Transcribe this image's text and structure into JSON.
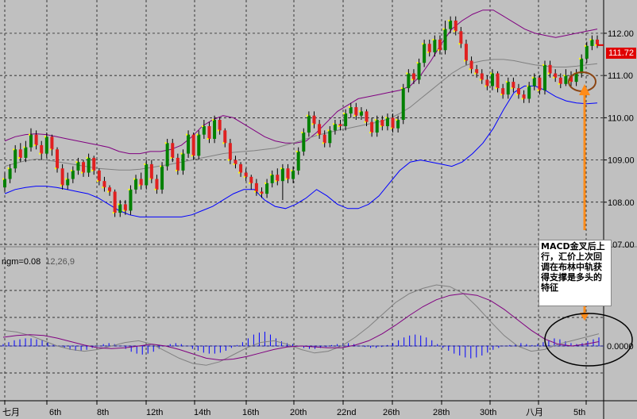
{
  "chart_data": [
    {
      "type": "candlestick",
      "panel": "price",
      "overlays": [
        "bollinger_upper",
        "bollinger_middle",
        "bollinger_lower"
      ],
      "y_ticks": [
        "107.00",
        "108.00",
        "109.00",
        "110.00",
        "111.00",
        "112.00"
      ],
      "ylim": [
        107.0,
        112.6
      ],
      "last_price": "111.72",
      "grid": true,
      "colors": {
        "up": "#008000",
        "down": "#e02020",
        "wick": "#000000",
        "upper_band": "#800080",
        "middle_band": "#808080",
        "lower_band": "#0000ff",
        "background": "#c0c0c0"
      },
      "candles": [
        {
          "o": 108.35,
          "c": 108.55,
          "h": 108.7,
          "l": 108.25
        },
        {
          "o": 108.55,
          "c": 108.8,
          "h": 108.9,
          "l": 108.45
        },
        {
          "o": 108.8,
          "c": 109.25,
          "h": 109.35,
          "l": 108.7
        },
        {
          "o": 109.25,
          "c": 109.05,
          "h": 109.4,
          "l": 108.95
        },
        {
          "o": 109.05,
          "c": 109.3,
          "h": 109.45,
          "l": 108.95
        },
        {
          "o": 109.3,
          "c": 109.6,
          "h": 109.75,
          "l": 109.2
        },
        {
          "o": 109.6,
          "c": 109.35,
          "h": 109.7,
          "l": 109.25
        },
        {
          "o": 109.35,
          "c": 109.15,
          "h": 109.45,
          "l": 109.0
        },
        {
          "o": 109.15,
          "c": 109.55,
          "h": 109.65,
          "l": 109.05
        },
        {
          "o": 109.55,
          "c": 109.25,
          "h": 109.6,
          "l": 109.1
        },
        {
          "o": 109.25,
          "c": 108.8,
          "h": 109.3,
          "l": 108.7
        },
        {
          "o": 108.8,
          "c": 108.4,
          "h": 108.9,
          "l": 108.3
        },
        {
          "o": 108.4,
          "c": 108.55,
          "h": 108.7,
          "l": 108.3
        },
        {
          "o": 108.55,
          "c": 108.75,
          "h": 108.85,
          "l": 108.45
        },
        {
          "o": 108.75,
          "c": 108.95,
          "h": 109.05,
          "l": 108.65
        },
        {
          "o": 108.95,
          "c": 108.7,
          "h": 109.0,
          "l": 108.6
        },
        {
          "o": 108.7,
          "c": 109.05,
          "h": 109.15,
          "l": 108.6
        },
        {
          "o": 109.05,
          "c": 108.75,
          "h": 109.1,
          "l": 108.65
        },
        {
          "o": 108.75,
          "c": 108.5,
          "h": 108.8,
          "l": 108.4
        },
        {
          "o": 108.5,
          "c": 108.35,
          "h": 108.6,
          "l": 108.25
        },
        {
          "o": 108.35,
          "c": 108.25,
          "h": 108.4,
          "l": 108.15
        },
        {
          "o": 108.25,
          "c": 107.75,
          "h": 108.3,
          "l": 107.65
        },
        {
          "o": 107.75,
          "c": 107.95,
          "h": 108.05,
          "l": 107.65
        },
        {
          "o": 107.95,
          "c": 107.8,
          "h": 108.05,
          "l": 107.7
        },
        {
          "o": 107.8,
          "c": 108.3,
          "h": 108.4,
          "l": 107.7
        },
        {
          "o": 108.3,
          "c": 108.55,
          "h": 108.65,
          "l": 108.2
        },
        {
          "o": 108.55,
          "c": 108.4,
          "h": 108.7,
          "l": 108.3
        },
        {
          "o": 108.4,
          "c": 108.9,
          "h": 109.0,
          "l": 108.3
        },
        {
          "o": 108.9,
          "c": 108.55,
          "h": 109.0,
          "l": 108.45
        },
        {
          "o": 108.55,
          "c": 108.3,
          "h": 108.65,
          "l": 108.2
        },
        {
          "o": 108.3,
          "c": 108.85,
          "h": 108.95,
          "l": 108.2
        },
        {
          "o": 108.85,
          "c": 109.4,
          "h": 109.5,
          "l": 108.75
        },
        {
          "o": 109.4,
          "c": 109.05,
          "h": 109.5,
          "l": 108.95
        },
        {
          "o": 109.05,
          "c": 108.75,
          "h": 109.15,
          "l": 108.65
        },
        {
          "o": 108.75,
          "c": 109.15,
          "h": 109.25,
          "l": 108.65
        },
        {
          "o": 109.15,
          "c": 109.6,
          "h": 109.7,
          "l": 109.05
        },
        {
          "o": 109.6,
          "c": 109.1,
          "h": 109.65,
          "l": 109.0
        },
        {
          "o": 109.1,
          "c": 109.6,
          "h": 109.7,
          "l": 109.0
        },
        {
          "o": 109.6,
          "c": 109.8,
          "h": 109.95,
          "l": 109.5
        },
        {
          "o": 109.8,
          "c": 109.5,
          "h": 109.9,
          "l": 109.4
        },
        {
          "o": 109.5,
          "c": 109.95,
          "h": 110.05,
          "l": 109.4
        },
        {
          "o": 109.95,
          "c": 109.7,
          "h": 110.0,
          "l": 109.6
        },
        {
          "o": 109.7,
          "c": 109.4,
          "h": 109.75,
          "l": 109.3
        },
        {
          "o": 109.4,
          "c": 109.0,
          "h": 109.5,
          "l": 108.9
        },
        {
          "o": 109.0,
          "c": 108.9,
          "h": 109.1,
          "l": 108.8
        },
        {
          "o": 108.9,
          "c": 108.7,
          "h": 108.95,
          "l": 108.6
        },
        {
          "o": 108.7,
          "c": 108.6,
          "h": 108.8,
          "l": 108.5
        },
        {
          "o": 108.6,
          "c": 108.45,
          "h": 108.65,
          "l": 108.3
        },
        {
          "o": 108.45,
          "c": 108.25,
          "h": 108.55,
          "l": 108.15
        },
        {
          "o": 108.25,
          "c": 108.2,
          "h": 108.35,
          "l": 108.1
        },
        {
          "o": 108.2,
          "c": 108.45,
          "h": 108.55,
          "l": 108.1
        },
        {
          "o": 108.45,
          "c": 108.65,
          "h": 108.75,
          "l": 108.35
        },
        {
          "o": 108.65,
          "c": 108.5,
          "h": 108.8,
          "l": 108.4
        },
        {
          "o": 108.5,
          "c": 108.8,
          "h": 108.9,
          "l": 108.05
        },
        {
          "o": 108.8,
          "c": 108.55,
          "h": 108.9,
          "l": 108.45
        },
        {
          "o": 108.55,
          "c": 108.75,
          "h": 108.85,
          "l": 108.45
        },
        {
          "o": 108.75,
          "c": 109.2,
          "h": 109.3,
          "l": 108.65
        },
        {
          "o": 109.2,
          "c": 109.65,
          "h": 109.75,
          "l": 109.1
        },
        {
          "o": 109.65,
          "c": 110.05,
          "h": 110.15,
          "l": 109.55
        },
        {
          "o": 110.05,
          "c": 109.85,
          "h": 110.15,
          "l": 109.75
        },
        {
          "o": 109.85,
          "c": 109.6,
          "h": 109.95,
          "l": 109.5
        },
        {
          "o": 109.6,
          "c": 109.4,
          "h": 109.7,
          "l": 109.3
        },
        {
          "o": 109.4,
          "c": 109.7,
          "h": 109.8,
          "l": 109.3
        },
        {
          "o": 109.7,
          "c": 109.85,
          "h": 109.95,
          "l": 109.6
        },
        {
          "o": 109.85,
          "c": 109.8,
          "h": 109.95,
          "l": 109.7
        },
        {
          "o": 109.8,
          "c": 110.1,
          "h": 110.2,
          "l": 109.7
        },
        {
          "o": 110.1,
          "c": 110.25,
          "h": 110.35,
          "l": 110.0
        },
        {
          "o": 110.25,
          "c": 110.05,
          "h": 110.35,
          "l": 109.95
        },
        {
          "o": 110.05,
          "c": 110.15,
          "h": 110.25,
          "l": 109.95
        },
        {
          "o": 110.15,
          "c": 109.9,
          "h": 110.2,
          "l": 109.8
        },
        {
          "o": 109.9,
          "c": 109.65,
          "h": 110.0,
          "l": 109.55
        },
        {
          "o": 109.65,
          "c": 109.95,
          "h": 110.05,
          "l": 109.55
        },
        {
          "o": 109.95,
          "c": 109.8,
          "h": 110.05,
          "l": 109.7
        },
        {
          "o": 109.8,
          "c": 110.0,
          "h": 110.1,
          "l": 109.7
        },
        {
          "o": 110.0,
          "c": 109.75,
          "h": 110.1,
          "l": 109.65
        },
        {
          "o": 109.75,
          "c": 109.95,
          "h": 110.05,
          "l": 109.65
        },
        {
          "o": 109.95,
          "c": 110.7,
          "h": 110.8,
          "l": 109.85
        },
        {
          "o": 110.7,
          "c": 111.05,
          "h": 111.15,
          "l": 110.6
        },
        {
          "o": 111.05,
          "c": 110.9,
          "h": 111.15,
          "l": 110.8
        },
        {
          "o": 110.9,
          "c": 111.3,
          "h": 111.4,
          "l": 110.8
        },
        {
          "o": 111.3,
          "c": 111.75,
          "h": 111.85,
          "l": 111.2
        },
        {
          "o": 111.75,
          "c": 111.55,
          "h": 111.85,
          "l": 111.45
        },
        {
          "o": 111.55,
          "c": 111.85,
          "h": 111.95,
          "l": 111.45
        },
        {
          "o": 111.85,
          "c": 111.6,
          "h": 111.95,
          "l": 111.5
        },
        {
          "o": 111.6,
          "c": 112.1,
          "h": 112.3,
          "l": 111.5
        },
        {
          "o": 112.1,
          "c": 112.3,
          "h": 112.4,
          "l": 112.0
        },
        {
          "o": 112.3,
          "c": 112.05,
          "h": 112.4,
          "l": 111.95
        },
        {
          "o": 112.05,
          "c": 111.75,
          "h": 112.15,
          "l": 111.65
        },
        {
          "o": 111.75,
          "c": 111.35,
          "h": 111.85,
          "l": 111.25
        },
        {
          "o": 111.35,
          "c": 111.15,
          "h": 111.45,
          "l": 111.05
        },
        {
          "o": 111.15,
          "c": 111.05,
          "h": 111.25,
          "l": 110.95
        },
        {
          "o": 111.05,
          "c": 110.9,
          "h": 111.15,
          "l": 110.8
        },
        {
          "o": 110.9,
          "c": 110.75,
          "h": 111.0,
          "l": 110.65
        },
        {
          "o": 110.75,
          "c": 111.05,
          "h": 111.15,
          "l": 110.65
        },
        {
          "o": 111.05,
          "c": 110.7,
          "h": 111.1,
          "l": 110.6
        },
        {
          "o": 110.7,
          "c": 110.55,
          "h": 110.8,
          "l": 110.45
        },
        {
          "o": 110.55,
          "c": 110.85,
          "h": 110.95,
          "l": 110.45
        },
        {
          "o": 110.85,
          "c": 110.7,
          "h": 110.95,
          "l": 110.6
        },
        {
          "o": 110.7,
          "c": 110.55,
          "h": 110.8,
          "l": 110.45
        },
        {
          "o": 110.55,
          "c": 110.45,
          "h": 110.65,
          "l": 110.35
        },
        {
          "o": 110.45,
          "c": 110.75,
          "h": 110.85,
          "l": 110.35
        },
        {
          "o": 110.75,
          "c": 110.95,
          "h": 111.05,
          "l": 110.65
        },
        {
          "o": 110.95,
          "c": 110.65,
          "h": 111.0,
          "l": 110.55
        },
        {
          "o": 110.65,
          "c": 111.25,
          "h": 111.35,
          "l": 110.55
        },
        {
          "o": 111.25,
          "c": 111.05,
          "h": 111.35,
          "l": 110.95
        },
        {
          "o": 111.05,
          "c": 110.95,
          "h": 111.15,
          "l": 110.85
        },
        {
          "o": 110.95,
          "c": 110.8,
          "h": 111.05,
          "l": 110.7
        },
        {
          "o": 110.8,
          "c": 111.0,
          "h": 111.15,
          "l": 110.75
        },
        {
          "o": 111.0,
          "c": 110.85,
          "h": 111.1,
          "l": 110.75
        },
        {
          "o": 110.85,
          "c": 111.05,
          "h": 111.15,
          "l": 110.75
        },
        {
          "o": 111.05,
          "c": 111.4,
          "h": 111.5,
          "l": 110.95
        },
        {
          "o": 111.4,
          "c": 111.7,
          "h": 111.8,
          "l": 111.3
        },
        {
          "o": 111.7,
          "c": 111.85,
          "h": 111.95,
          "l": 111.6
        },
        {
          "o": 111.85,
          "c": 111.72,
          "h": 111.95,
          "l": 111.65
        }
      ],
      "upper_band": [
        109.45,
        109.55,
        109.6,
        109.62,
        109.6,
        109.55,
        109.5,
        109.45,
        109.4,
        109.35,
        109.3,
        109.2,
        109.15,
        109.15,
        109.2,
        109.2,
        109.25,
        109.35,
        109.55,
        109.8,
        109.95,
        110.05,
        110.0,
        109.85,
        109.7,
        109.55,
        109.45,
        109.4,
        109.4,
        109.45,
        109.65,
        109.9,
        110.15,
        110.3,
        110.45,
        110.5,
        110.55,
        110.6,
        110.65,
        110.75,
        111.0,
        111.35,
        111.75,
        112.1,
        112.3,
        112.45,
        112.55,
        112.55,
        112.4,
        112.25,
        112.1,
        112.0,
        111.95,
        111.9,
        111.95,
        112.0,
        112.05,
        112.1
      ],
      "middle_band": [
        108.85,
        108.92,
        108.98,
        109.02,
        109.0,
        108.96,
        108.92,
        108.88,
        108.84,
        108.8,
        108.78,
        108.76,
        108.76,
        108.78,
        108.82,
        108.86,
        108.9,
        108.95,
        109.0,
        109.05,
        109.1,
        109.15,
        109.18,
        109.2,
        109.22,
        109.25,
        109.28,
        109.35,
        109.42,
        109.5,
        109.58,
        109.64,
        109.7,
        109.75,
        109.8,
        109.85,
        109.9,
        109.98,
        110.1,
        110.25,
        110.45,
        110.65,
        110.85,
        111.05,
        111.2,
        111.3,
        111.35,
        111.38,
        111.38,
        111.35,
        111.3,
        111.25,
        111.22,
        111.2,
        111.2,
        111.22,
        111.25,
        111.28
      ],
      "lower_band": [
        108.2,
        108.3,
        108.35,
        108.38,
        108.38,
        108.35,
        108.3,
        108.25,
        108.2,
        108.1,
        107.95,
        107.8,
        107.7,
        107.65,
        107.65,
        107.65,
        107.65,
        107.65,
        107.7,
        107.8,
        107.9,
        108.05,
        108.2,
        108.3,
        108.3,
        108.05,
        107.9,
        107.85,
        107.95,
        108.1,
        108.3,
        108.15,
        107.95,
        107.85,
        107.85,
        107.95,
        108.15,
        108.45,
        108.75,
        108.95,
        109.0,
        108.95,
        108.9,
        108.85,
        108.95,
        109.15,
        109.4,
        109.75,
        110.2,
        110.6,
        110.75,
        110.75,
        110.65,
        110.5,
        110.4,
        110.35,
        110.33,
        110.35
      ]
    },
    {
      "type": "macd",
      "panel": "indicator",
      "label": "ngm=0.08",
      "params": "12,26,9",
      "zero_label": "0.0000",
      "histogram_color": "#0000ff",
      "macd_line_color": "#808080",
      "signal_line_color": "#800080",
      "histogram": [
        0.02,
        0.04,
        0.06,
        0.07,
        0.08,
        0.08,
        0.07,
        0.06,
        0.04,
        0.02,
        0.0,
        -0.02,
        -0.04,
        -0.05,
        -0.05,
        -0.04,
        -0.02,
        0.0,
        0.02,
        0.03,
        0.02,
        0.0,
        -0.03,
        -0.06,
        -0.08,
        -0.09,
        -0.08,
        -0.06,
        -0.03,
        0.0,
        0.02,
        0.03,
        0.02,
        0.0,
        -0.03,
        -0.05,
        -0.07,
        -0.08,
        -0.08,
        -0.07,
        -0.05,
        -0.02,
        0.01,
        0.04,
        0.08,
        0.12,
        0.14,
        0.15,
        0.12,
        0.08,
        0.05,
        0.03,
        0.02,
        0.0,
        -0.02,
        -0.03,
        -0.03,
        -0.02,
        -0.01,
        0.01,
        0.02,
        0.02,
        0.03,
        0.02,
        0.0,
        -0.01,
        -0.02,
        -0.02,
        -0.01,
        0.01,
        0.03,
        0.06,
        0.09,
        0.11,
        0.12,
        0.11,
        0.09,
        0.06,
        0.02,
        -0.02,
        -0.05,
        -0.08,
        -0.1,
        -0.12,
        -0.13,
        -0.12,
        -0.1,
        -0.07,
        -0.04,
        -0.02,
        0.0,
        0.01,
        0.02,
        0.03,
        0.02,
        0.01,
        0.02,
        0.04,
        0.06,
        0.08,
        0.07,
        0.05,
        0.03,
        0.02,
        0.03,
        0.05,
        0.07,
        0.09
      ],
      "macd_line": [
        0.18,
        0.16,
        0.12,
        0.06,
        0.0,
        -0.04,
        -0.06,
        -0.04,
        0.0,
        0.04,
        0.06,
        0.02,
        -0.06,
        -0.14,
        -0.2,
        -0.22,
        -0.18,
        -0.1,
        -0.02,
        0.04,
        0.06,
        0.02,
        -0.04,
        -0.08,
        -0.06,
        0.0,
        0.1,
        0.22,
        0.36,
        0.5,
        0.6,
        0.66,
        0.7,
        0.68,
        0.6,
        0.45,
        0.28,
        0.12,
        0.0,
        -0.06,
        -0.04,
        0.02,
        0.06,
        0.1,
        0.14
      ],
      "signal_line": [
        0.1,
        0.12,
        0.13,
        0.12,
        0.09,
        0.05,
        0.01,
        -0.02,
        -0.03,
        -0.02,
        0.0,
        0.02,
        0.0,
        -0.04,
        -0.09,
        -0.14,
        -0.16,
        -0.15,
        -0.12,
        -0.08,
        -0.04,
        -0.01,
        0.0,
        -0.01,
        -0.02,
        -0.02,
        0.01,
        0.06,
        0.14,
        0.24,
        0.35,
        0.45,
        0.53,
        0.58,
        0.6,
        0.58,
        0.52,
        0.42,
        0.3,
        0.18,
        0.08,
        0.02,
        0.0,
        0.02,
        0.05
      ]
    }
  ],
  "x_labels": [
    "七月",
    "6th",
    "8th",
    "12th",
    "14th",
    "16th",
    "20th",
    "22nd",
    "26th",
    "28th",
    "30th",
    "八月",
    "5th"
  ],
  "annotation": {
    "text": "MACD金叉后上行，汇价上次回调在布林中轨获得支撑是多头的特征",
    "arrow_color": "#ff8c1a",
    "ellipse_color": "#8b4513"
  }
}
